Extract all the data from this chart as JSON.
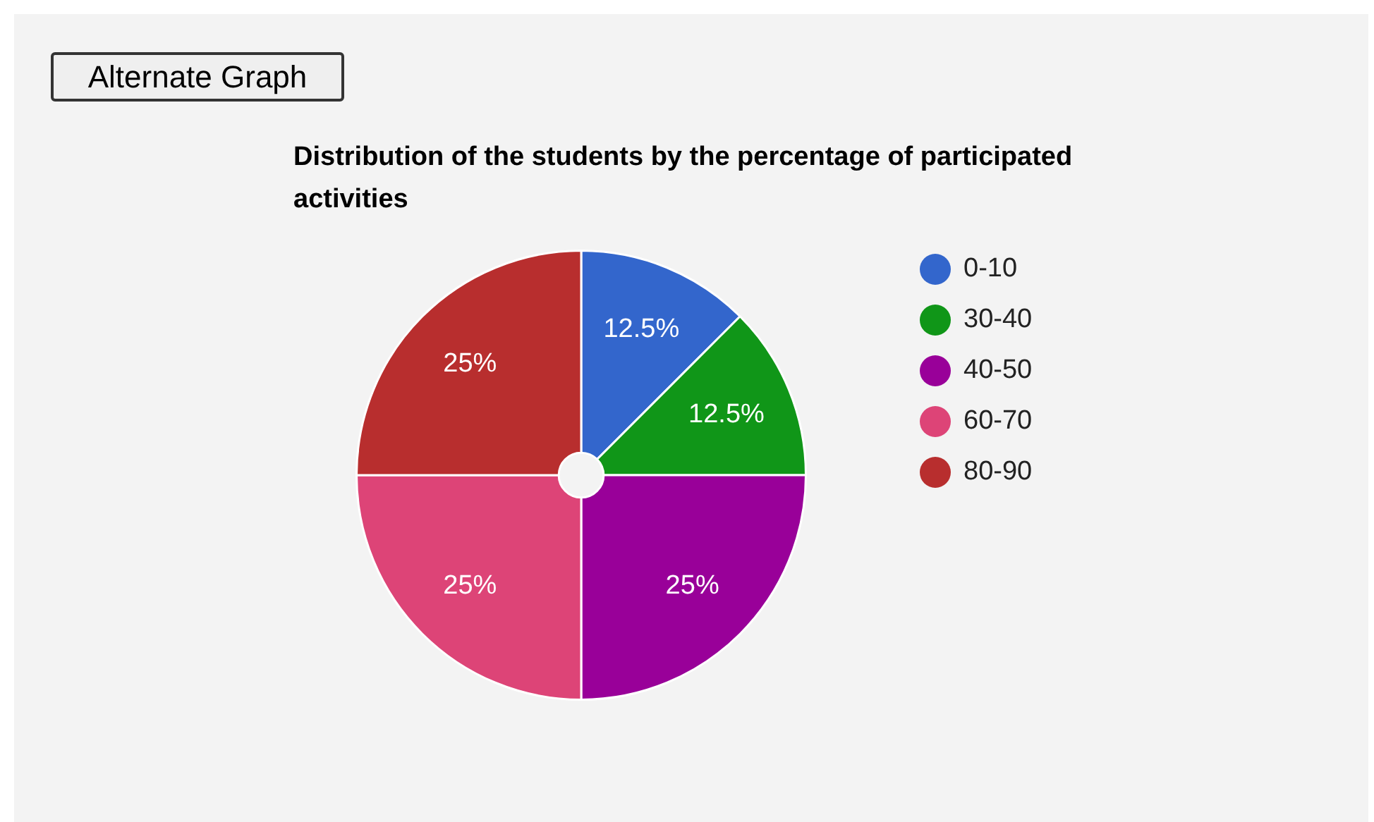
{
  "chart_data": {
    "type": "pie",
    "title": "Distribution of the students by the percentage of participated activities",
    "annotations": [
      "Alternate Graph"
    ],
    "categories": [
      "0-10",
      "30-40",
      "40-50",
      "60-70",
      "80-90"
    ],
    "values": [
      12.5,
      12.5,
      25,
      25,
      25
    ],
    "colors": [
      "#3366cc",
      "#109618",
      "#990099",
      "#dd4477",
      "#b82e2e"
    ],
    "value_labels": [
      "12.5%",
      "12.5%",
      "25%",
      "25%",
      "25%"
    ],
    "legend": "right"
  }
}
